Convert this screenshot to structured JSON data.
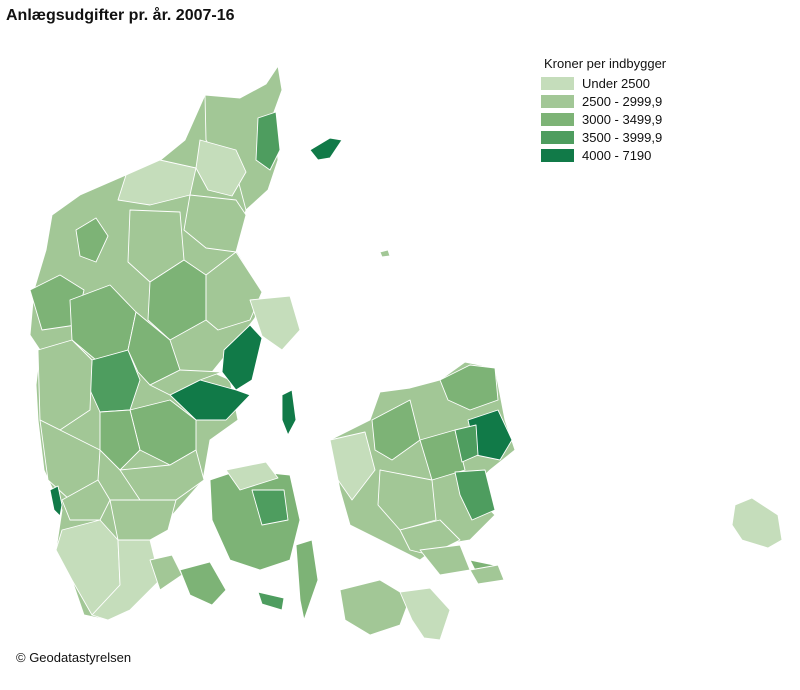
{
  "title": "Anlægsudgifter pr. år. 2007-16",
  "legend": {
    "title": "Kroner per indbygger",
    "items": [
      {
        "label": "Under 2500",
        "color": "#c5ddbb"
      },
      {
        "label": "2500 - 2999,9",
        "color": "#a2c796"
      },
      {
        "label": "3000 - 3499,9",
        "color": "#7db376"
      },
      {
        "label": "3500 - 3999,9",
        "color": "#4e9d5f"
      },
      {
        "label": "4000 - 7190",
        "color": "#117a48"
      }
    ]
  },
  "credit": "© Geodatastyrelsen"
}
